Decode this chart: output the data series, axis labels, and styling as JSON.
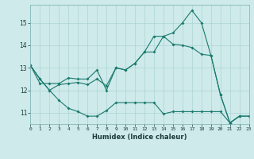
{
  "xlabel": "Humidex (Indice chaleur)",
  "x_ticks": [
    0,
    1,
    2,
    3,
    4,
    5,
    6,
    7,
    8,
    9,
    10,
    11,
    12,
    13,
    14,
    15,
    16,
    17,
    18,
    19,
    20,
    21,
    22,
    23
  ],
  "y_ticks": [
    11,
    12,
    13,
    14,
    15
  ],
  "xlim": [
    0,
    23
  ],
  "ylim": [
    10.5,
    15.8
  ],
  "bg_color": "#ceeaea",
  "grid_color": "#aed4d4",
  "line_color": "#1a7a6e",
  "series1_x": [
    0,
    1,
    2,
    3,
    4,
    5,
    6,
    7,
    8,
    9,
    10,
    11,
    12,
    13,
    14,
    15,
    16,
    17,
    18,
    19,
    20,
    21,
    22
  ],
  "series1_y": [
    13.1,
    12.5,
    12.0,
    11.55,
    11.2,
    11.05,
    10.85,
    10.85,
    11.1,
    11.45,
    11.45,
    11.45,
    11.45,
    11.45,
    10.95,
    11.05,
    11.05,
    11.05,
    11.05,
    11.05,
    11.05,
    10.55,
    10.85
  ],
  "series2_x": [
    0,
    1,
    2,
    3,
    4,
    5,
    6,
    7,
    8,
    9,
    10,
    11,
    12,
    13,
    14,
    15,
    16,
    17,
    18,
    19,
    20,
    21,
    22,
    23
  ],
  "series2_y": [
    13.1,
    12.5,
    12.0,
    12.25,
    12.3,
    12.35,
    12.25,
    12.5,
    12.2,
    13.0,
    12.9,
    13.2,
    13.7,
    13.7,
    14.4,
    14.05,
    14.0,
    13.9,
    13.6,
    13.55,
    11.8,
    10.55,
    10.85,
    10.85
  ],
  "series3_x": [
    0,
    1,
    2,
    3,
    4,
    5,
    6,
    7,
    8,
    9,
    10,
    11,
    12,
    13,
    14,
    15,
    16,
    17,
    18,
    19,
    20,
    21,
    22,
    23
  ],
  "series3_y": [
    13.1,
    12.3,
    12.3,
    12.3,
    12.55,
    12.5,
    12.5,
    12.9,
    12.0,
    13.0,
    12.9,
    13.2,
    13.7,
    14.4,
    14.4,
    14.55,
    15.0,
    15.55,
    15.0,
    13.55,
    11.8,
    10.55,
    10.85,
    10.85
  ]
}
